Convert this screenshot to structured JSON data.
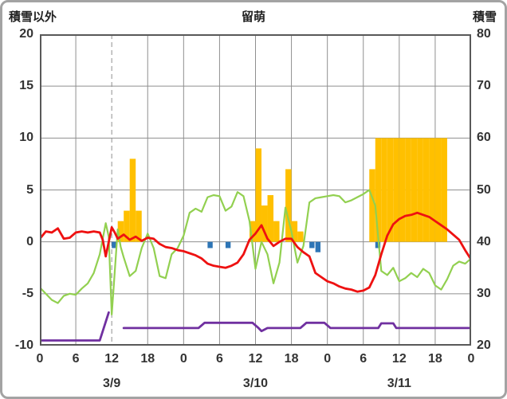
{
  "titles": {
    "left_axis": "積雪以外",
    "station": "留萌",
    "right_axis": "積雪"
  },
  "chart_data": {
    "type": "combo",
    "station": "留萌",
    "x_axis": {
      "range_hours": [
        0,
        72
      ],
      "tick_step_hours": 6,
      "hour_tick_labels": [
        "0",
        "6",
        "12",
        "18",
        "0",
        "6",
        "12",
        "18",
        "0",
        "6",
        "12",
        "18",
        "0"
      ],
      "day_labels": [
        {
          "label": "3/9",
          "center_hour": 12
        },
        {
          "label": "3/10",
          "center_hour": 36
        },
        {
          "label": "3/11",
          "center_hour": 60
        }
      ]
    },
    "left_axis": {
      "title": "積雪以外",
      "min": -10,
      "max": 20,
      "ticks": [
        20,
        15,
        10,
        5,
        0,
        -5,
        -10
      ]
    },
    "right_axis": {
      "title": "積雪",
      "min": 20,
      "max": 80,
      "ticks": [
        80,
        70,
        60,
        50,
        40,
        30,
        20
      ]
    },
    "now_line_hour": 12,
    "grid": true,
    "legend": false,
    "colors": {
      "snowfall_bar": "#FFC000",
      "precip_bar": "#2E75B6",
      "temperature_line": "#EE1111",
      "green_line": "#92D050",
      "snow_depth_line": "#7030A0",
      "grid": "#8F8F8F",
      "frame": "#595959",
      "outer_border": "#A3A3A3",
      "label": "#333333"
    },
    "series": {
      "snowfall_bars": {
        "axis": "left",
        "bars": [
          [
            13,
            2
          ],
          [
            14,
            3
          ],
          [
            15,
            8
          ],
          [
            16,
            3
          ],
          [
            35,
            2
          ],
          [
            36,
            9
          ],
          [
            37,
            3.5
          ],
          [
            38,
            4.5
          ],
          [
            39,
            2
          ],
          [
            41,
            7
          ],
          [
            42,
            2
          ],
          [
            43,
            1
          ],
          [
            55,
            7
          ],
          [
            56,
            10
          ],
          [
            57,
            10
          ],
          [
            58,
            10
          ],
          [
            59,
            10
          ],
          [
            60,
            10
          ],
          [
            61,
            10
          ],
          [
            62,
            10
          ],
          [
            63,
            10
          ],
          [
            64,
            10
          ],
          [
            65,
            10
          ],
          [
            66,
            10
          ],
          [
            67,
            10
          ]
        ]
      },
      "precip_bars": {
        "axis": "left",
        "bars": [
          [
            12,
            0.6
          ],
          [
            28,
            0.6
          ],
          [
            31,
            0.6
          ],
          [
            45,
            0.6
          ],
          [
            46,
            1.0
          ],
          [
            56,
            0.6
          ]
        ]
      },
      "temperature": {
        "axis": "left",
        "points": [
          [
            0,
            0.3
          ],
          [
            1,
            1.0
          ],
          [
            2,
            0.9
          ],
          [
            3,
            1.3
          ],
          [
            4,
            0.3
          ],
          [
            5,
            0.4
          ],
          [
            6,
            0.9
          ],
          [
            7,
            1.0
          ],
          [
            8,
            0.9
          ],
          [
            9,
            1.0
          ],
          [
            10,
            0.9
          ],
          [
            10.5,
            0.2
          ],
          [
            11,
            -1.4
          ],
          [
            12,
            1.4
          ],
          [
            12.5,
            0.9
          ],
          [
            13,
            0.3
          ],
          [
            14,
            0.7
          ],
          [
            15,
            0.2
          ],
          [
            16,
            0.5
          ],
          [
            17,
            0.1
          ],
          [
            18,
            0.4
          ],
          [
            19,
            0.3
          ],
          [
            20,
            -0.2
          ],
          [
            21,
            -0.5
          ],
          [
            22,
            -0.6
          ],
          [
            23,
            -0.8
          ],
          [
            24,
            -0.9
          ],
          [
            25,
            -1.1
          ],
          [
            26,
            -1.3
          ],
          [
            27,
            -1.6
          ],
          [
            28,
            -2.1
          ],
          [
            29,
            -2.3
          ],
          [
            30,
            -2.4
          ],
          [
            31,
            -2.5
          ],
          [
            32,
            -2.3
          ],
          [
            33,
            -2.0
          ],
          [
            34,
            -1.2
          ],
          [
            35,
            0.2
          ],
          [
            36,
            0.8
          ],
          [
            37,
            1.6
          ],
          [
            38,
            0.3
          ],
          [
            39,
            -0.4
          ],
          [
            40,
            0.0
          ],
          [
            41,
            0.3
          ],
          [
            42,
            0.3
          ],
          [
            43,
            -0.5
          ],
          [
            44,
            -1.0
          ],
          [
            45,
            -1.4
          ],
          [
            46,
            -3.0
          ],
          [
            47,
            -3.4
          ],
          [
            48,
            -3.8
          ],
          [
            49,
            -4.0
          ],
          [
            50,
            -4.3
          ],
          [
            51,
            -4.5
          ],
          [
            52,
            -4.6
          ],
          [
            53,
            -4.8
          ],
          [
            54,
            -4.7
          ],
          [
            55,
            -4.4
          ],
          [
            56,
            -3.2
          ],
          [
            57,
            -1.2
          ],
          [
            58,
            0.6
          ],
          [
            59,
            1.7
          ],
          [
            60,
            2.2
          ],
          [
            61,
            2.5
          ],
          [
            62,
            2.6
          ],
          [
            63,
            2.8
          ],
          [
            64,
            2.6
          ],
          [
            65,
            2.4
          ],
          [
            66,
            2.0
          ],
          [
            67,
            1.6
          ],
          [
            68,
            1.2
          ],
          [
            69,
            0.7
          ],
          [
            70,
            0.2
          ],
          [
            71,
            -0.8
          ],
          [
            72,
            -1.7
          ]
        ]
      },
      "green": {
        "axis": "left",
        "points": [
          [
            0,
            -4.4
          ],
          [
            1,
            -5.0
          ],
          [
            2,
            -5.6
          ],
          [
            3,
            -5.9
          ],
          [
            4,
            -5.2
          ],
          [
            5,
            -5.0
          ],
          [
            6,
            -5.1
          ],
          [
            7,
            -4.5
          ],
          [
            8,
            -4.0
          ],
          [
            9,
            -3.0
          ],
          [
            10,
            -1.2
          ],
          [
            11,
            1.8
          ],
          [
            11.5,
            0.5
          ],
          [
            12,
            -7.0
          ],
          [
            13,
            1.2
          ],
          [
            13.5,
            -0.5
          ],
          [
            14,
            -1.5
          ],
          [
            15,
            -3.3
          ],
          [
            16,
            -2.8
          ],
          [
            17,
            -0.6
          ],
          [
            18,
            0.8
          ],
          [
            19,
            -0.6
          ],
          [
            20,
            -3.3
          ],
          [
            21,
            -3.5
          ],
          [
            22,
            -1.2
          ],
          [
            23,
            -0.6
          ],
          [
            24,
            0.6
          ],
          [
            25,
            2.8
          ],
          [
            26,
            3.2
          ],
          [
            27,
            2.9
          ],
          [
            28,
            4.3
          ],
          [
            29,
            4.5
          ],
          [
            30,
            4.4
          ],
          [
            31,
            3.0
          ],
          [
            32,
            3.4
          ],
          [
            33,
            4.8
          ],
          [
            34,
            4.4
          ],
          [
            35,
            2.0
          ],
          [
            36,
            -2.6
          ],
          [
            37,
            0.0
          ],
          [
            38,
            -1.2
          ],
          [
            39,
            -4.0
          ],
          [
            40,
            -2.0
          ],
          [
            41,
            3.3
          ],
          [
            42,
            1.0
          ],
          [
            43,
            -2.0
          ],
          [
            44,
            -0.4
          ],
          [
            45,
            3.8
          ],
          [
            46,
            4.2
          ],
          [
            47,
            4.3
          ],
          [
            48,
            4.4
          ],
          [
            49,
            4.5
          ],
          [
            50,
            4.4
          ],
          [
            51,
            3.8
          ],
          [
            52,
            4.0
          ],
          [
            53,
            4.3
          ],
          [
            54,
            4.6
          ],
          [
            55,
            5.0
          ],
          [
            56,
            3.5
          ],
          [
            57,
            -2.8
          ],
          [
            58,
            -3.2
          ],
          [
            59,
            -2.5
          ],
          [
            60,
            -3.8
          ],
          [
            61,
            -3.5
          ],
          [
            62,
            -3.0
          ],
          [
            63,
            -3.4
          ],
          [
            64,
            -2.6
          ],
          [
            65,
            -3.0
          ],
          [
            66,
            -4.2
          ],
          [
            67,
            -4.6
          ],
          [
            68,
            -3.6
          ],
          [
            69,
            -2.3
          ],
          [
            70,
            -1.9
          ],
          [
            71,
            -2.1
          ],
          [
            72,
            -1.6
          ]
        ]
      },
      "snow_depth": {
        "axis": "right",
        "segments": [
          [
            [
              0,
              21
            ],
            [
              10,
              21
            ],
            [
              11.5,
              26.4
            ]
          ],
          [
            [
              14,
              23.4
            ],
            [
              26.5,
              23.4
            ],
            [
              27.5,
              24.4
            ],
            [
              35.5,
              24.4
            ],
            [
              36.5,
              23.4
            ],
            [
              37,
              22.8
            ],
            [
              38,
              23.4
            ],
            [
              43.5,
              23.4
            ],
            [
              44.5,
              24.4
            ],
            [
              47.5,
              24.4
            ],
            [
              48.5,
              23.4
            ],
            [
              56.5,
              23.4
            ],
            [
              57,
              24.3
            ],
            [
              59,
              24.3
            ],
            [
              59.5,
              23.4
            ],
            [
              72,
              23.4
            ]
          ]
        ]
      }
    }
  }
}
